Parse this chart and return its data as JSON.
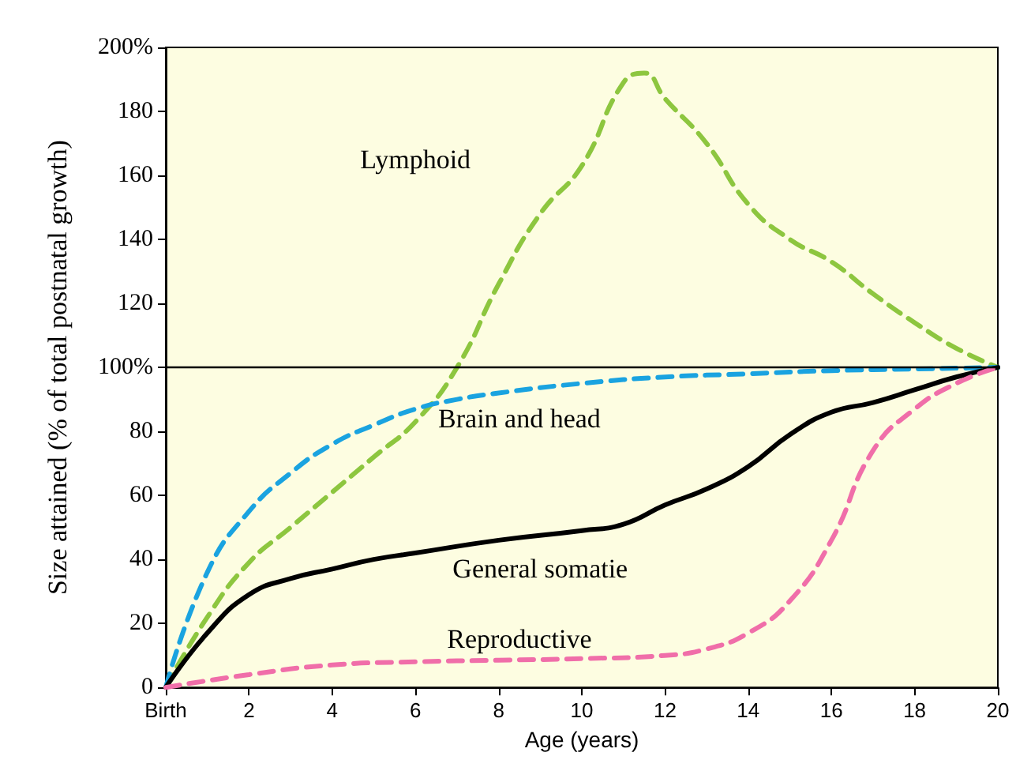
{
  "chart_data": {
    "type": "line",
    "xlabel": "Age (years)",
    "ylabel": "Size attained (% of total postnatal growth)",
    "xlim": [
      0,
      20
    ],
    "ylim": [
      0,
      200
    ],
    "xticks": [
      {
        "value": 0,
        "label": "Birth"
      },
      2,
      4,
      6,
      8,
      10,
      12,
      14,
      16,
      18,
      20
    ],
    "yticks": [
      0,
      20,
      40,
      60,
      80,
      {
        "value": 100,
        "label": "100%"
      },
      120,
      140,
      160,
      180,
      {
        "value": 200,
        "label": "200%"
      }
    ],
    "grid": false,
    "legend": false,
    "marker": "none",
    "ref_lines": [
      {
        "axis": "y",
        "value": 100,
        "color": "#000000"
      }
    ],
    "series": [
      {
        "name": "Lymphoid",
        "color": "#8dc63f",
        "line_style": "dashed",
        "x": [
          0,
          1,
          2,
          3,
          4,
          5,
          6,
          7,
          8,
          9,
          10,
          11,
          11.5,
          12,
          13,
          14,
          15,
          16,
          17,
          18,
          19,
          20
        ],
        "values": [
          0,
          22,
          39,
          50,
          61,
          72,
          83,
          100,
          126,
          148,
          163,
          189,
          192,
          184,
          170,
          151,
          140,
          133,
          123,
          114,
          106,
          100
        ]
      },
      {
        "name": "Brain and head",
        "color": "#1aa3e0",
        "line_style": "dashed",
        "x": [
          0,
          1,
          2,
          3,
          4,
          5,
          6,
          7,
          8,
          10,
          12,
          14,
          16,
          18,
          20
        ],
        "values": [
          0,
          36,
          55,
          67,
          76,
          82,
          87,
          90,
          92,
          95,
          97,
          98,
          99,
          99.5,
          100
        ]
      },
      {
        "name": "General somatie",
        "color": "#000000",
        "line_style": "solid",
        "x": [
          0,
          1,
          2,
          3,
          4,
          5,
          6,
          8,
          10,
          11,
          12,
          13,
          14,
          15,
          16,
          17,
          18,
          19,
          20
        ],
        "values": [
          0,
          17,
          29,
          34,
          37,
          40,
          42,
          46,
          49,
          51,
          57,
          62,
          69,
          79,
          86,
          89,
          93,
          97,
          100
        ]
      },
      {
        "name": "Reproductive",
        "color": "#f06ea9",
        "line_style": "dashed",
        "x": [
          0,
          2,
          4,
          6,
          8,
          10,
          12,
          13,
          14,
          15,
          16,
          17,
          18,
          19,
          20
        ],
        "values": [
          0,
          4,
          7,
          8,
          8.5,
          9,
          10,
          12,
          17,
          27,
          46,
          74,
          87,
          95,
          100
        ]
      }
    ]
  }
}
